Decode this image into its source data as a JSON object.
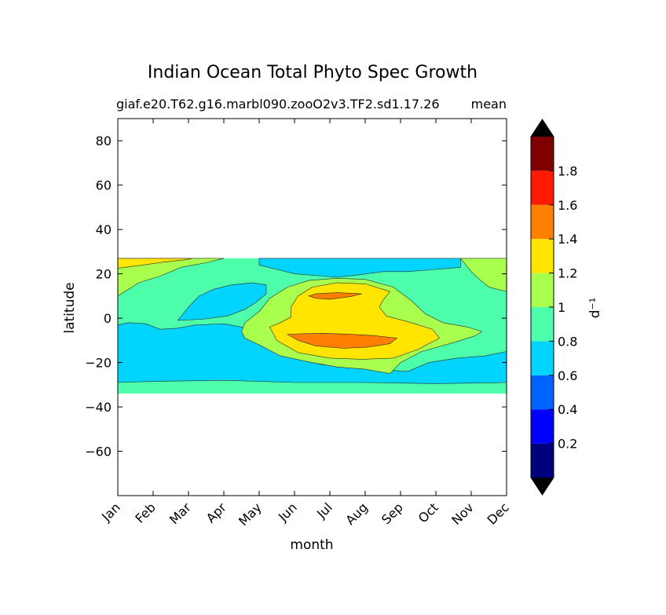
{
  "chart_data": {
    "type": "heatmap",
    "style": "filled-contour",
    "title": "Indian Ocean Total Phyto Spec Growth",
    "subtitle_left": "giaf.e20.T62.g16.marbl090.zooO2v3.TF2.sd1.17.26",
    "subtitle_right": "mean",
    "xlabel": "month",
    "ylabel": "latitude",
    "x_categories": [
      "Jan",
      "Feb",
      "Mar",
      "Apr",
      "May",
      "Jun",
      "Jul",
      "Aug",
      "Sep",
      "Oct",
      "Nov",
      "Dec"
    ],
    "ylim": [
      -80,
      90
    ],
    "y_ticks": [
      80,
      60,
      40,
      20,
      0,
      -20,
      -40,
      -60
    ],
    "y_tick_labels": [
      "80",
      "60",
      "40",
      "20",
      "0",
      "−20",
      "−40",
      "−60"
    ],
    "data_lat_range": [
      -34,
      27
    ],
    "colorbar": {
      "label": "d⁻¹",
      "levels": [
        0.0,
        0.2,
        0.4,
        0.6,
        0.8,
        1.0,
        1.2,
        1.4,
        1.6,
        1.8,
        2.0
      ],
      "tick_labels": [
        "0.2",
        "0.4",
        "0.6",
        "0.8",
        "1",
        "1.2",
        "1.4",
        "1.6",
        "1.8"
      ],
      "colors": [
        "#00007f",
        "#0000ff",
        "#0062ff",
        "#00d4ff",
        "#4dffaa",
        "#a9ff4d",
        "#ffe500",
        "#ff7f00",
        "#ff1a00",
        "#7f0000"
      ],
      "extend": "both",
      "under_color": "#000000",
      "over_color": "#000000"
    },
    "regions": [
      {
        "name": "background",
        "value": 0.9,
        "range": "0.8-1.0"
      },
      {
        "name": "south-band-low",
        "value": 0.7,
        "range": "0.6-0.8",
        "month_range": [
          "Jan",
          "Dec"
        ],
        "lat_range": [
          -29,
          -3
        ]
      },
      {
        "name": "west-arabian-sea-low",
        "value": 0.7,
        "range": "0.6-0.8",
        "lat_range": [
          -2,
          20
        ]
      },
      {
        "name": "north-band-low",
        "value": 0.7,
        "range": "0.6-0.8",
        "lat_range": [
          17,
          27
        ]
      },
      {
        "name": "winter-north-high",
        "value": 1.1,
        "range": "1.0-1.2",
        "lat_range": [
          10,
          27
        ]
      },
      {
        "name": "jan-north-peak",
        "value": 1.3,
        "range": "1.2-1.4",
        "lat_range": [
          22,
          27
        ]
      },
      {
        "name": "summer-equatorial-bloom",
        "value": 1.1,
        "range": "1.0-1.2",
        "month_range": [
          "May",
          "Oct"
        ],
        "lat_range": [
          -25,
          20
        ]
      },
      {
        "name": "summer-bloom-core",
        "value": 1.3,
        "range": "1.2-1.4",
        "month_range": [
          "Jun",
          "Sep"
        ],
        "lat_range": [
          -20,
          16
        ]
      },
      {
        "name": "peak-north",
        "value": 1.5,
        "range": "1.4-1.6",
        "month": "Jul",
        "lat_range": [
          8,
          11
        ]
      },
      {
        "name": "peak-south",
        "value": 1.5,
        "range": "1.4-1.6",
        "month_range": [
          "Jun",
          "Aug"
        ],
        "lat_range": [
          -15,
          -7
        ]
      }
    ]
  }
}
